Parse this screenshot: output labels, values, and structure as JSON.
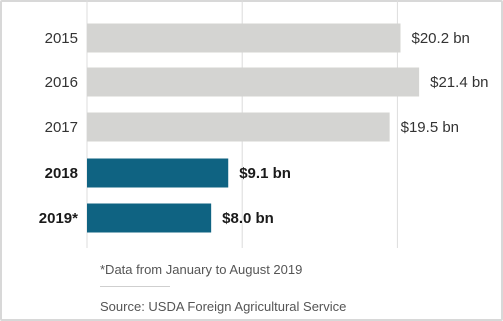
{
  "chart_data": {
    "type": "bar",
    "orientation": "horizontal",
    "categories": [
      "2015",
      "2016",
      "2017",
      "2018",
      "2019*"
    ],
    "values": [
      20.2,
      21.4,
      19.5,
      9.1,
      8.0
    ],
    "value_labels": [
      "$20.2 bn",
      "$21.4 bn",
      "$19.5 bn",
      "$9.1 bn",
      "$8.0 bn"
    ],
    "highlighted": [
      false,
      false,
      false,
      true,
      true
    ],
    "colors": {
      "default": "#d4d4d2",
      "highlight": "#0f6382",
      "grid": "#dcdcdc"
    },
    "xlim": [
      0,
      25
    ],
    "gridlines_at": [
      0,
      10,
      20
    ],
    "grid": true,
    "title": "",
    "xlabel": "",
    "ylabel": ""
  },
  "notes": {
    "footnote": "*Data from January to August 2019",
    "source": "Source: USDA Foreign Agricultural Service"
  }
}
